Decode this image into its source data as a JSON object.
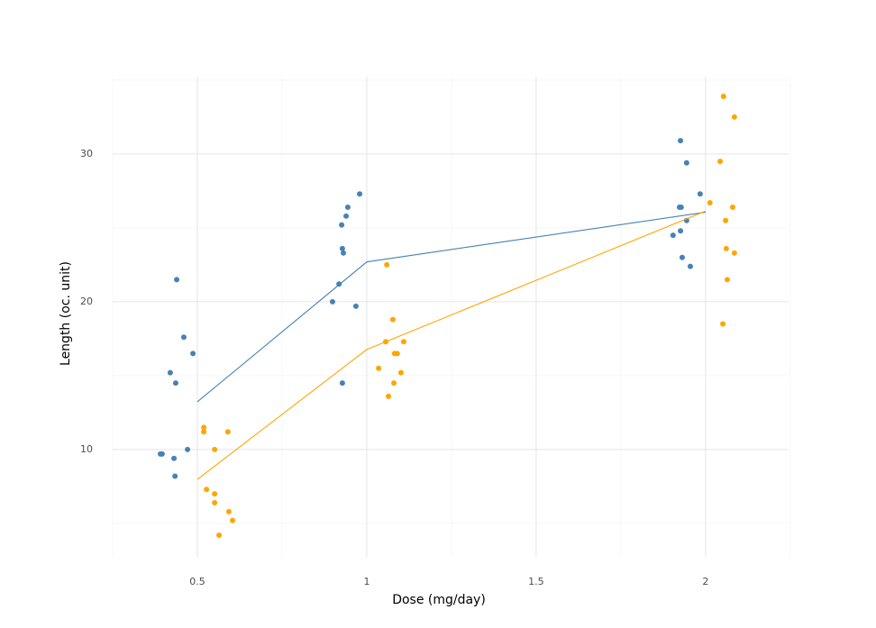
{
  "chart_data": {
    "type": "scatter",
    "x_label": "Dose (mg/day)",
    "y_label": "Length (oc. unit)",
    "xlim": [
      0.25,
      2.245
    ],
    "ylim": [
      2.74,
      35.24
    ],
    "xticks": [
      0.5,
      1,
      1.5,
      2
    ],
    "yticks": [
      10,
      20,
      30
    ],
    "x_minor_grid": [
      0.25,
      0.75,
      1.25,
      1.75,
      2.25
    ],
    "y_minor_grid": [
      5,
      15,
      25,
      35
    ],
    "grid": true,
    "series": [
      {
        "color": "#4682b4",
        "x": [
          0.439,
          0.46,
          0.487,
          0.42,
          0.436,
          0.391,
          0.396,
          0.471,
          0.431,
          0.434,
          0.979,
          0.944,
          0.939,
          0.926,
          0.928,
          0.931,
          0.918,
          0.899,
          0.968,
          0.928,
          1.926,
          1.944,
          1.984,
          1.923,
          1.928,
          1.944,
          1.926,
          1.904,
          1.931,
          1.955
        ],
        "values": [
          21.5,
          17.6,
          16.5,
          15.2,
          14.5,
          9.7,
          9.7,
          10.0,
          9.4,
          8.2,
          27.3,
          26.4,
          25.8,
          25.2,
          23.6,
          23.3,
          21.2,
          20.0,
          19.7,
          14.5,
          30.9,
          29.4,
          27.3,
          26.4,
          26.4,
          25.5,
          24.8,
          24.5,
          23.0,
          22.4
        ],
        "mean_x": [
          0.5,
          1,
          2
        ],
        "mean_values": [
          13.23,
          22.7,
          26.06
        ]
      },
      {
        "color": "#ffa500",
        "x": [
          0.519,
          0.519,
          0.59,
          0.551,
          0.527,
          0.551,
          0.551,
          0.593,
          0.604,
          0.564,
          1.059,
          1.077,
          1.056,
          1.109,
          1.082,
          1.09,
          1.035,
          1.101,
          1.08,
          1.064,
          2.053,
          2.085,
          2.043,
          2.013,
          2.08,
          2.059,
          2.061,
          2.085,
          2.064,
          2.051
        ],
        "values": [
          11.5,
          11.2,
          11.2,
          10.0,
          7.3,
          7.0,
          6.4,
          5.8,
          5.2,
          4.2,
          22.5,
          18.8,
          17.3,
          17.3,
          16.5,
          16.5,
          15.5,
          15.2,
          14.5,
          13.6,
          33.9,
          32.5,
          29.5,
          26.7,
          26.4,
          25.5,
          23.6,
          23.3,
          21.5,
          18.5
        ],
        "mean_x": [
          0.5,
          1,
          2
        ],
        "mean_values": [
          7.98,
          16.77,
          26.14
        ]
      }
    ]
  }
}
